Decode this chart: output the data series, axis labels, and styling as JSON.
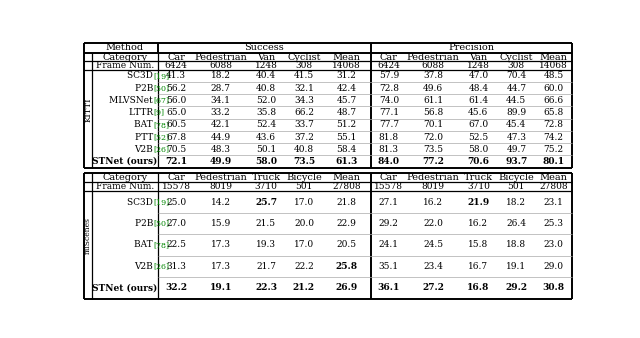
{
  "kitti_cats_success": [
    "Car",
    "Pedestrian",
    "Van",
    "Cyclist",
    "Mean"
  ],
  "kitti_cats_precision": [
    "Car",
    "Pedestrian",
    "Van",
    "Cyclist",
    "Mean"
  ],
  "kitti_frames": [
    "6424",
    "6088",
    "1248",
    "308",
    "14068"
  ],
  "kitti_rows": [
    [
      "SC3D",
      "19",
      "41.3",
      "18.2",
      "40.4",
      "41.5",
      "31.2",
      "57.9",
      "37.8",
      "47.0",
      "70.4",
      "48.5"
    ],
    [
      "P2B",
      "50",
      "56.2",
      "28.7",
      "40.8",
      "32.1",
      "42.4",
      "72.8",
      "49.6",
      "48.4",
      "44.7",
      "60.0"
    ],
    [
      "MLVSNet",
      "67",
      "56.0",
      "34.1",
      "52.0",
      "34.3",
      "45.7",
      "74.0",
      "61.1",
      "61.4",
      "44.5",
      "66.6"
    ],
    [
      "LTTR",
      "9",
      "65.0",
      "33.2",
      "35.8",
      "66.2",
      "48.7",
      "77.1",
      "56.8",
      "45.6",
      "89.9",
      "65.8"
    ],
    [
      "BAT",
      "78",
      "60.5",
      "42.1",
      "52.4",
      "33.7",
      "51.2",
      "77.7",
      "70.1",
      "67.0",
      "45.4",
      "72.8"
    ],
    [
      "PTT",
      "52",
      "67.8",
      "44.9",
      "43.6",
      "37.2",
      "55.1",
      "81.8",
      "72.0",
      "52.5",
      "47.3",
      "74.2"
    ],
    [
      "V2B",
      "26",
      "70.5",
      "48.3",
      "50.1",
      "40.8",
      "58.4",
      "81.3",
      "73.5",
      "58.0",
      "49.7",
      "75.2"
    ],
    [
      "STNet (ours)",
      "",
      "72.1",
      "49.9",
      "58.0",
      "73.5",
      "61.3",
      "84.0",
      "77.2",
      "70.6",
      "93.7",
      "80.1"
    ]
  ],
  "kitti_bold_row": 7,
  "ms_cats_success": [
    "Car",
    "Pedestrian",
    "Truck",
    "Bicycle",
    "Mean"
  ],
  "ms_cats_precision": [
    "Car",
    "Pedestrian",
    "Truck",
    "Bicycle",
    "Mean"
  ],
  "ms_frames": [
    "15578",
    "8019",
    "3710",
    "501",
    "27808"
  ],
  "ms_rows": [
    [
      "SC3D",
      "19",
      "25.0",
      "14.2",
      "25.7",
      "17.0",
      "21.8",
      "27.1",
      "16.2",
      "21.9",
      "18.2",
      "23.1"
    ],
    [
      "P2B",
      "50",
      "27.0",
      "15.9",
      "21.5",
      "20.0",
      "22.9",
      "29.2",
      "22.0",
      "16.2",
      "26.4",
      "25.3"
    ],
    [
      "BAT",
      "78",
      "22.5",
      "17.3",
      "19.3",
      "17.0",
      "20.5",
      "24.1",
      "24.5",
      "15.8",
      "18.8",
      "23.0"
    ],
    [
      "V2B",
      "26",
      "31.3",
      "17.3",
      "21.7",
      "22.2",
      "25.8",
      "35.1",
      "23.4",
      "16.7",
      "19.1",
      "29.0"
    ],
    [
      "STNet (ours)",
      "",
      "32.2",
      "19.1",
      "22.3",
      "21.2",
      "26.9",
      "36.1",
      "27.2",
      "16.8",
      "29.2",
      "30.8"
    ]
  ],
  "ms_bold_row": 4,
  "ms_extra_bold": {
    "0": [
      4,
      9
    ],
    "3": [
      5
    ]
  },
  "kitti_extra_bold": {},
  "ref_color": "#008800",
  "text_color": "#000000",
  "bg_color": "#ffffff"
}
